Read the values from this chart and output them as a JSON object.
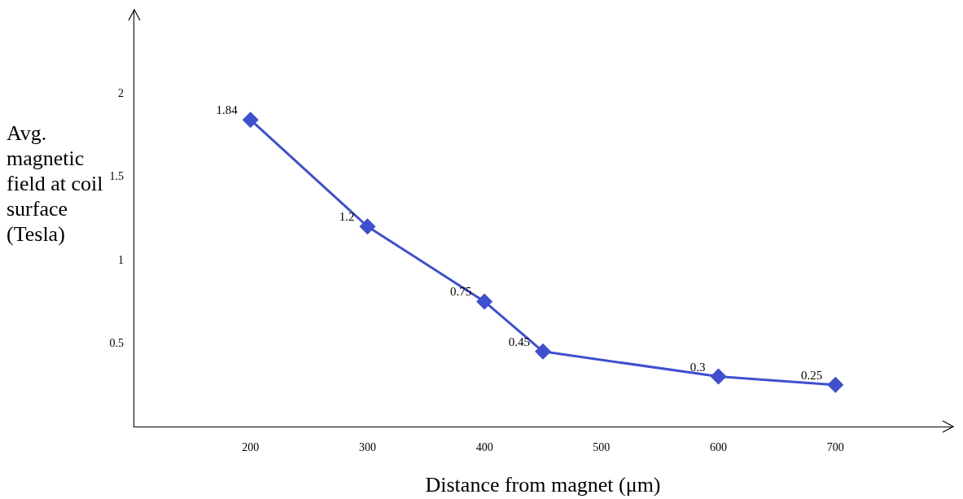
{
  "chart_data": {
    "type": "line",
    "xlabel": "Distance from magnet (μm)",
    "ylabel": "Avg. magnetic field at coil surface (Tesla)",
    "x": [
      200,
      300,
      400,
      450,
      600,
      700
    ],
    "series": [
      {
        "color": "#3f4fd0",
        "values": [
          1.84,
          1.2,
          0.75,
          0.45,
          0.3,
          0.25
        ]
      }
    ],
    "xlim": [
      100,
      800
    ],
    "xticks": [
      200,
      300,
      400,
      500,
      600,
      700
    ],
    "ylim": [
      0,
      2.5
    ],
    "yticks": [
      0.5,
      1,
      1.5,
      2
    ],
    "data_labels": true,
    "marker": "diamond",
    "line_style": "solid",
    "grid": false
  }
}
